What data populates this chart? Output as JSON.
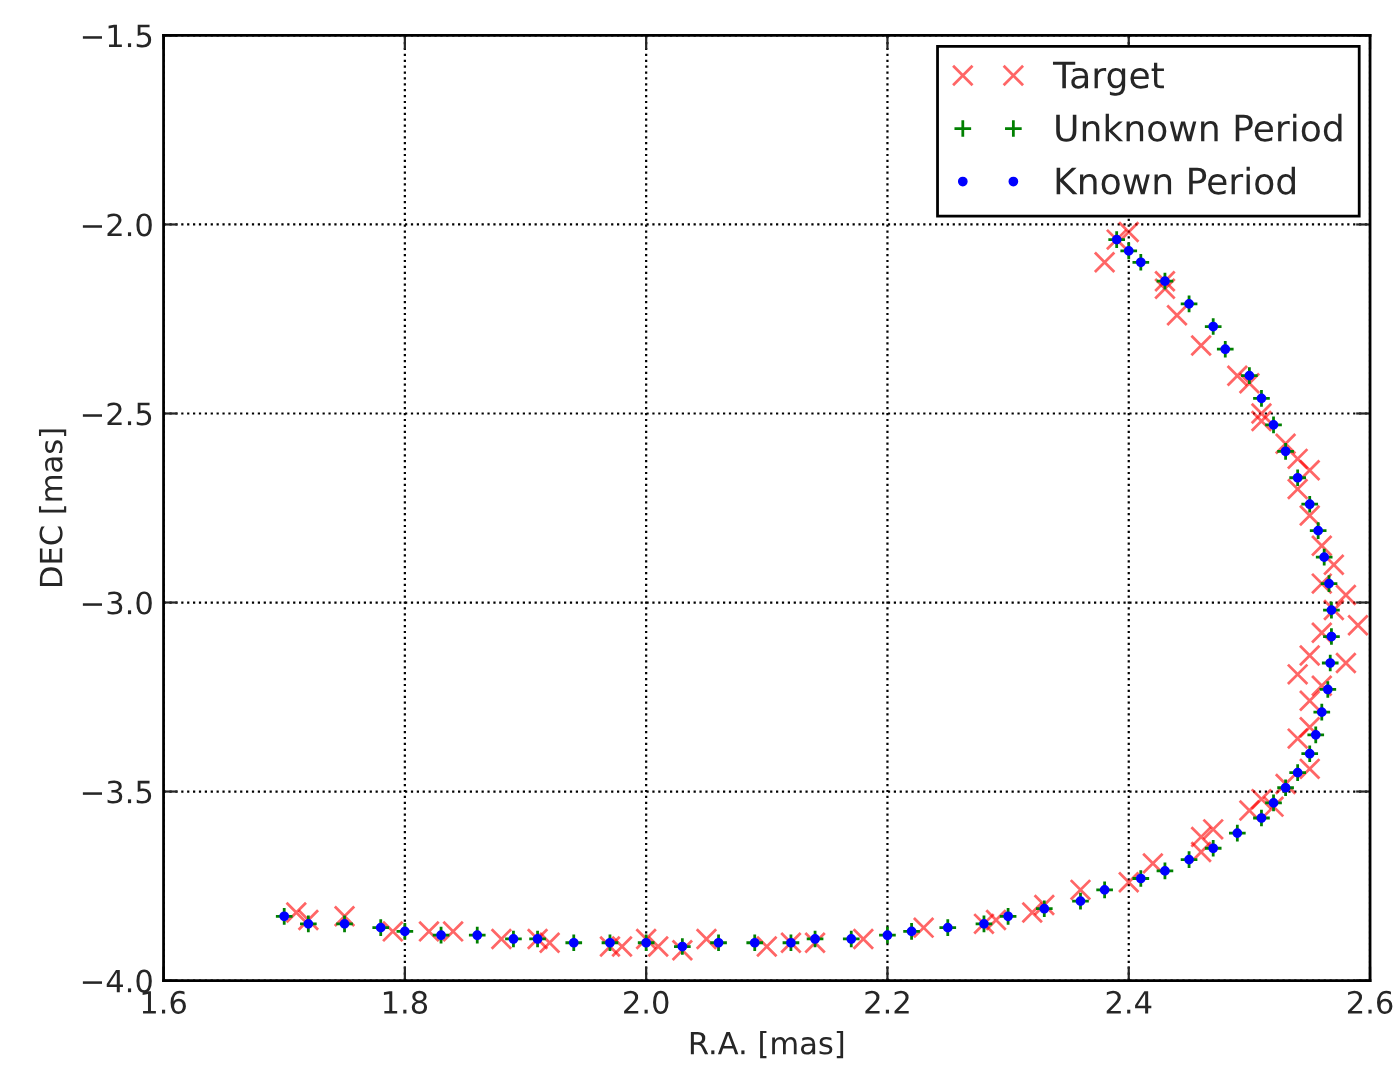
{
  "chart_data": {
    "type": "scatter",
    "xlabel": "R.A. [mas]",
    "ylabel": "DEC [mas]",
    "xlim": [
      1.6,
      2.6
    ],
    "ylim": [
      -4.0,
      -1.5
    ],
    "xticks": [
      {
        "value": 1.6,
        "label": "1.6"
      },
      {
        "value": 1.8,
        "label": "1.8"
      },
      {
        "value": 2.0,
        "label": "2.0"
      },
      {
        "value": 2.2,
        "label": "2.2"
      },
      {
        "value": 2.4,
        "label": "2.4"
      },
      {
        "value": 2.6,
        "label": "2.6"
      }
    ],
    "yticks": [
      {
        "value": -4.0,
        "label": "−4.0"
      },
      {
        "value": -3.5,
        "label": "−3.5"
      },
      {
        "value": -3.0,
        "label": "−3.0"
      },
      {
        "value": -2.5,
        "label": "−2.5"
      },
      {
        "value": -2.0,
        "label": "−2.0"
      },
      {
        "value": -1.5,
        "label": "−1.5"
      }
    ],
    "grid": true,
    "legend": "top right",
    "series": [
      {
        "name": "Target",
        "color": "#ff0000",
        "marker": "cross",
        "x": [
          1.71,
          1.72,
          1.75,
          1.79,
          1.82,
          1.84,
          1.88,
          1.91,
          1.92,
          1.97,
          1.98,
          2.0,
          2.01,
          2.03,
          2.05,
          2.1,
          2.12,
          2.14,
          2.18,
          2.23,
          2.28,
          2.29,
          2.32,
          2.33,
          2.36,
          2.4,
          2.42,
          2.46,
          2.46,
          2.47,
          2.5,
          2.51,
          2.52,
          2.53,
          2.55,
          2.54,
          2.55,
          2.55,
          2.56,
          2.54,
          2.55,
          2.58,
          2.56,
          2.59,
          2.57,
          2.58,
          2.56,
          2.57,
          2.56,
          2.55,
          2.54,
          2.55,
          2.53,
          2.54,
          2.51,
          2.51,
          2.5,
          2.49,
          2.46,
          2.44,
          2.43,
          2.43,
          2.38,
          2.39,
          2.4
        ],
        "values": [
          -3.82,
          -3.84,
          -3.83,
          -3.87,
          -3.87,
          -3.87,
          -3.89,
          -3.89,
          -3.9,
          -3.91,
          -3.91,
          -3.89,
          -3.91,
          -3.92,
          -3.89,
          -3.91,
          -3.9,
          -3.9,
          -3.89,
          -3.86,
          -3.85,
          -3.84,
          -3.82,
          -3.8,
          -3.76,
          -3.74,
          -3.69,
          -3.66,
          -3.62,
          -3.6,
          -3.55,
          -3.52,
          -3.54,
          -3.48,
          -3.44,
          -3.36,
          -3.33,
          -3.26,
          -3.22,
          -3.19,
          -3.14,
          -3.16,
          -3.08,
          -3.06,
          -3.02,
          -2.98,
          -2.95,
          -2.9,
          -2.85,
          -2.77,
          -2.7,
          -2.65,
          -2.58,
          -2.62,
          -2.52,
          -2.5,
          -2.42,
          -2.4,
          -2.32,
          -2.24,
          -2.17,
          -2.15,
          -2.1,
          -2.04,
          -2.02
        ]
      },
      {
        "name": "Unknown Period",
        "color": "#008000",
        "marker": "plus",
        "x": [
          1.7,
          1.72,
          1.75,
          1.78,
          1.8,
          1.83,
          1.86,
          1.89,
          1.91,
          1.94,
          1.97,
          2.0,
          2.03,
          2.06,
          2.09,
          2.12,
          2.14,
          2.17,
          2.2,
          2.22,
          2.25,
          2.28,
          2.3,
          2.33,
          2.36,
          2.38,
          2.41,
          2.43,
          2.45,
          2.47,
          2.49,
          2.51,
          2.52,
          2.53,
          2.54,
          2.55,
          2.555,
          2.56,
          2.565,
          2.567,
          2.568,
          2.568,
          2.566,
          2.562,
          2.557,
          2.55,
          2.54,
          2.53,
          2.52,
          2.51,
          2.5,
          2.48,
          2.47,
          2.45,
          2.43,
          2.41,
          2.4,
          2.39
        ],
        "values": [
          -3.83,
          -3.85,
          -3.85,
          -3.86,
          -3.87,
          -3.88,
          -3.88,
          -3.89,
          -3.89,
          -3.9,
          -3.9,
          -3.9,
          -3.91,
          -3.9,
          -3.9,
          -3.9,
          -3.89,
          -3.89,
          -3.88,
          -3.87,
          -3.86,
          -3.85,
          -3.83,
          -3.81,
          -3.79,
          -3.76,
          -3.73,
          -3.71,
          -3.68,
          -3.65,
          -3.61,
          -3.57,
          -3.53,
          -3.49,
          -3.45,
          -3.4,
          -3.35,
          -3.29,
          -3.23,
          -3.16,
          -3.09,
          -3.02,
          -2.95,
          -2.88,
          -2.81,
          -2.74,
          -2.67,
          -2.6,
          -2.53,
          -2.46,
          -2.4,
          -2.33,
          -2.27,
          -2.21,
          -2.15,
          -2.1,
          -2.07,
          -2.04
        ]
      },
      {
        "name": "Known Period",
        "color": "#0000ff",
        "marker": "circle",
        "x": [
          1.7,
          1.72,
          1.75,
          1.78,
          1.8,
          1.83,
          1.86,
          1.89,
          1.91,
          1.94,
          1.97,
          2.0,
          2.03,
          2.06,
          2.09,
          2.12,
          2.14,
          2.17,
          2.2,
          2.22,
          2.25,
          2.28,
          2.3,
          2.33,
          2.36,
          2.38,
          2.41,
          2.43,
          2.45,
          2.47,
          2.49,
          2.51,
          2.52,
          2.53,
          2.54,
          2.55,
          2.555,
          2.56,
          2.565,
          2.567,
          2.568,
          2.568,
          2.566,
          2.562,
          2.557,
          2.55,
          2.54,
          2.53,
          2.52,
          2.51,
          2.5,
          2.48,
          2.47,
          2.45,
          2.43,
          2.41,
          2.4,
          2.39
        ],
        "values": [
          -3.83,
          -3.85,
          -3.85,
          -3.86,
          -3.87,
          -3.88,
          -3.88,
          -3.89,
          -3.89,
          -3.9,
          -3.9,
          -3.9,
          -3.91,
          -3.9,
          -3.9,
          -3.9,
          -3.89,
          -3.89,
          -3.88,
          -3.87,
          -3.86,
          -3.85,
          -3.83,
          -3.81,
          -3.79,
          -3.76,
          -3.73,
          -3.71,
          -3.68,
          -3.65,
          -3.61,
          -3.57,
          -3.53,
          -3.49,
          -3.45,
          -3.4,
          -3.35,
          -3.29,
          -3.23,
          -3.16,
          -3.09,
          -3.02,
          -2.95,
          -2.88,
          -2.81,
          -2.74,
          -2.67,
          -2.6,
          -2.53,
          -2.46,
          -2.4,
          -2.33,
          -2.27,
          -2.21,
          -2.15,
          -2.1,
          -2.07,
          -2.04
        ]
      }
    ]
  }
}
